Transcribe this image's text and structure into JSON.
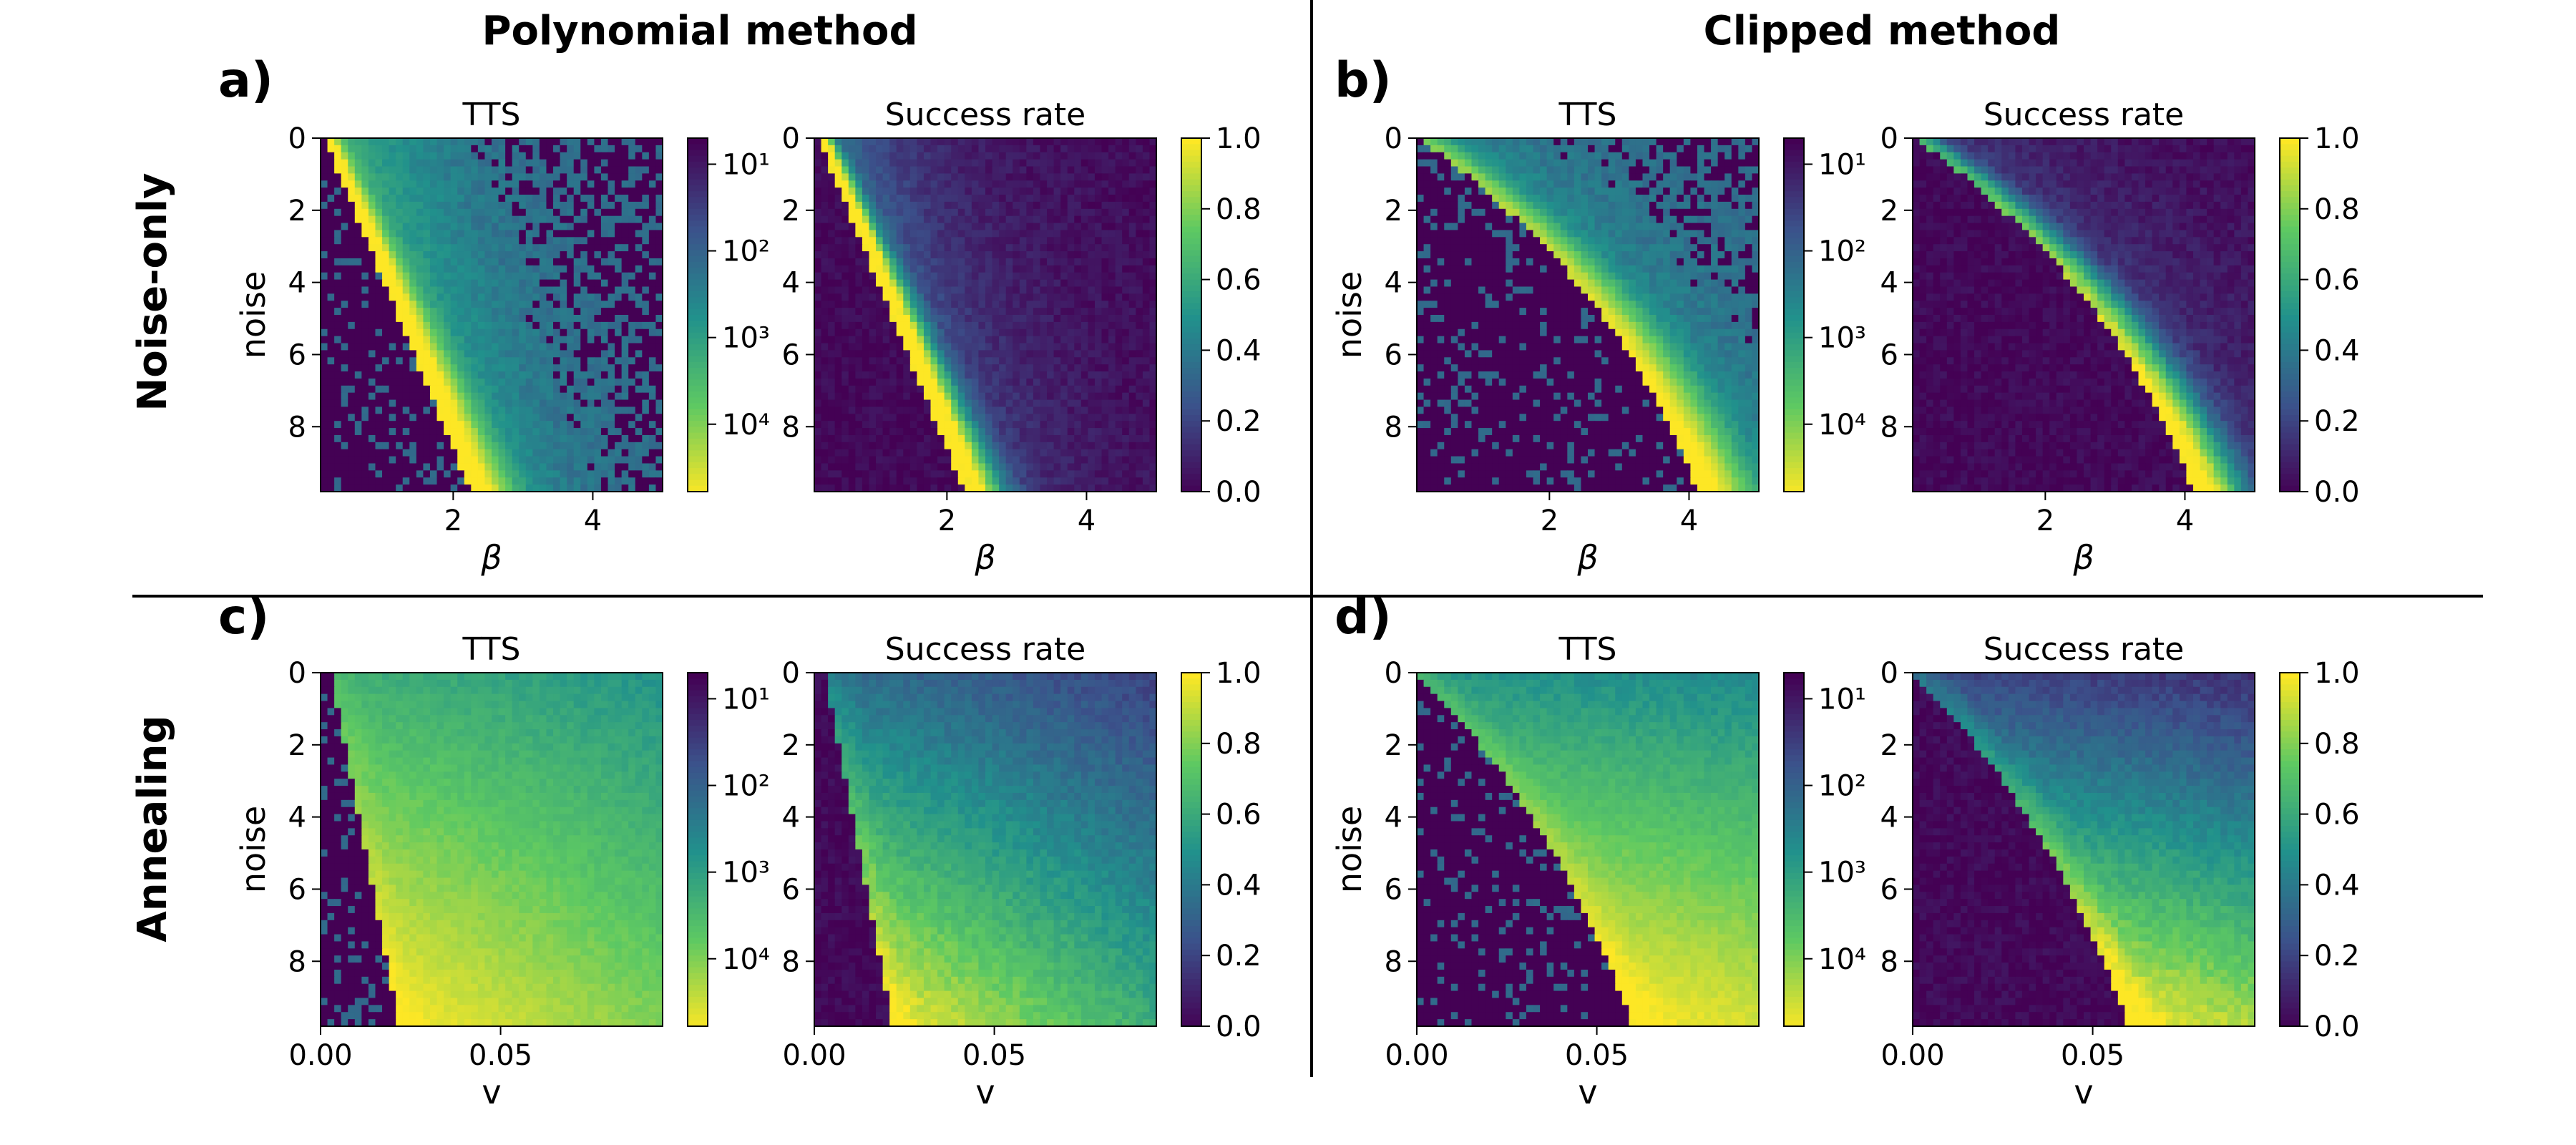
{
  "figure": {
    "col_titles": [
      "Polynomial method",
      "Clipped method"
    ],
    "row_titles": [
      "Noise-only",
      "Annealing"
    ],
    "panel_letters": [
      "a)",
      "b)",
      "c)",
      "d)"
    ],
    "colormap_stops": [
      "#440154",
      "#3b528b",
      "#21918c",
      "#5ec962",
      "#fde725"
    ]
  },
  "chart_data": [
    {
      "type": "heatmap",
      "panel": "a)",
      "method": "Polynomial",
      "row": "Noise-only",
      "title": "TTS",
      "xlabel": "β",
      "ylabel": "noise",
      "xlim": [
        0.1,
        5.0
      ],
      "ylim": [
        0,
        9.8
      ],
      "xticks": [
        "2",
        "4"
      ],
      "yticks": [
        "0",
        "2",
        "4",
        "6",
        "8"
      ],
      "colorbar": {
        "scale": "log",
        "range": [
          5,
          60000
        ],
        "ticks": [
          "10¹",
          "10²",
          "10³",
          "10⁴"
        ],
        "reversed": true
      }
    },
    {
      "type": "heatmap",
      "panel": "a)",
      "method": "Polynomial",
      "row": "Noise-only",
      "title": "Success rate",
      "xlabel": "β",
      "ylabel": "",
      "xlim": [
        0.1,
        5.0
      ],
      "ylim": [
        0,
        9.8
      ],
      "xticks": [
        "2",
        "4"
      ],
      "yticks": [
        "0",
        "2",
        "4",
        "6",
        "8"
      ],
      "colorbar": {
        "scale": "linear",
        "range": [
          0.0,
          1.0
        ],
        "ticks": [
          "0.0",
          "0.2",
          "0.4",
          "0.6",
          "0.8",
          "1.0"
        ],
        "reversed": false
      }
    },
    {
      "type": "heatmap",
      "panel": "b)",
      "method": "Clipped",
      "row": "Noise-only",
      "title": "TTS",
      "xlabel": "β",
      "ylabel": "noise",
      "xlim": [
        0.1,
        5.0
      ],
      "ylim": [
        0,
        9.8
      ],
      "xticks": [
        "2",
        "4"
      ],
      "yticks": [
        "0",
        "2",
        "4",
        "6",
        "8"
      ],
      "colorbar": {
        "scale": "log",
        "range": [
          5,
          60000
        ],
        "ticks": [
          "10¹",
          "10²",
          "10³",
          "10⁴"
        ],
        "reversed": true
      }
    },
    {
      "type": "heatmap",
      "panel": "b)",
      "method": "Clipped",
      "row": "Noise-only",
      "title": "Success rate",
      "xlabel": "β",
      "ylabel": "",
      "xlim": [
        0.1,
        5.0
      ],
      "ylim": [
        0,
        9.8
      ],
      "xticks": [
        "2",
        "4"
      ],
      "yticks": [
        "0",
        "2",
        "4",
        "6",
        "8"
      ],
      "colorbar": {
        "scale": "linear",
        "range": [
          0.0,
          1.0
        ],
        "ticks": [
          "0.0",
          "0.2",
          "0.4",
          "0.6",
          "0.8",
          "1.0"
        ],
        "reversed": false
      }
    },
    {
      "type": "heatmap",
      "panel": "c)",
      "method": "Polynomial",
      "row": "Annealing",
      "title": "TTS",
      "xlabel": "v",
      "ylabel": "noise",
      "xlim": [
        0.0,
        0.095
      ],
      "ylim": [
        0,
        9.8
      ],
      "xticks": [
        "0.00",
        "0.05"
      ],
      "yticks": [
        "0",
        "2",
        "4",
        "6",
        "8"
      ],
      "colorbar": {
        "scale": "log",
        "range": [
          5,
          60000
        ],
        "ticks": [
          "10¹",
          "10²",
          "10³",
          "10⁴"
        ],
        "reversed": true
      }
    },
    {
      "type": "heatmap",
      "panel": "c)",
      "method": "Polynomial",
      "row": "Annealing",
      "title": "Success rate",
      "xlabel": "v",
      "ylabel": "",
      "xlim": [
        0.0,
        0.095
      ],
      "ylim": [
        0,
        9.8
      ],
      "xticks": [
        "0.00",
        "0.05"
      ],
      "yticks": [
        "0",
        "2",
        "4",
        "6",
        "8"
      ],
      "colorbar": {
        "scale": "linear",
        "range": [
          0.0,
          1.0
        ],
        "ticks": [
          "0.0",
          "0.2",
          "0.4",
          "0.6",
          "0.8",
          "1.0"
        ],
        "reversed": false
      }
    },
    {
      "type": "heatmap",
      "panel": "d)",
      "method": "Clipped",
      "row": "Annealing",
      "title": "TTS",
      "xlabel": "v",
      "ylabel": "noise",
      "xlim": [
        0.0,
        0.095
      ],
      "ylim": [
        0,
        9.8
      ],
      "xticks": [
        "0.00",
        "0.05"
      ],
      "yticks": [
        "0",
        "2",
        "4",
        "6",
        "8"
      ],
      "colorbar": {
        "scale": "log",
        "range": [
          5,
          60000
        ],
        "ticks": [
          "10¹",
          "10²",
          "10³",
          "10⁴"
        ],
        "reversed": true
      }
    },
    {
      "type": "heatmap",
      "panel": "d)",
      "method": "Clipped",
      "row": "Annealing",
      "title": "Success rate",
      "xlabel": "v",
      "ylabel": "",
      "xlim": [
        0.0,
        0.095
      ],
      "ylim": [
        0,
        9.8
      ],
      "xticks": [
        "0.00",
        "0.05"
      ],
      "yticks": [
        "0",
        "2",
        "4",
        "6",
        "8"
      ],
      "colorbar": {
        "scale": "linear",
        "range": [
          0.0,
          1.0
        ],
        "ticks": [
          "0.0",
          "0.2",
          "0.4",
          "0.6",
          "0.8",
          "1.0"
        ],
        "reversed": false
      }
    }
  ]
}
